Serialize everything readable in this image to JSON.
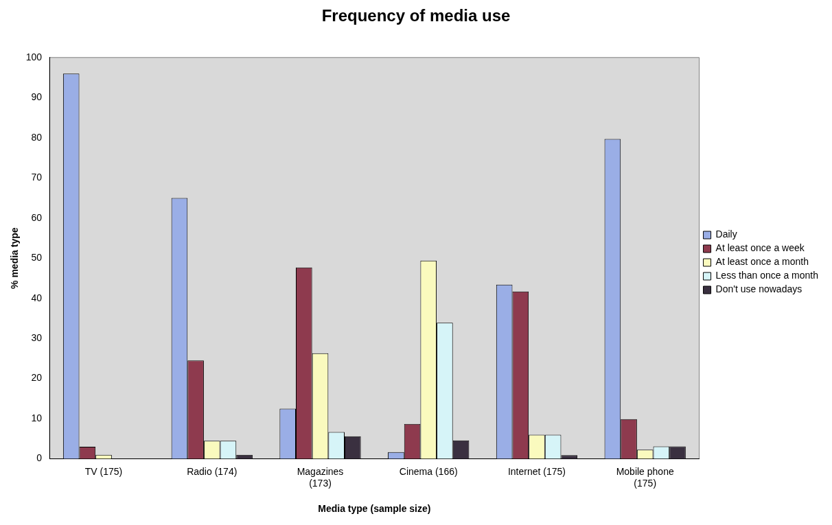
{
  "chart_data": {
    "type": "bar",
    "title": "Frequency of media use",
    "xlabel": "Media type (sample size)",
    "ylabel": "% media type",
    "categories": [
      "TV (175)",
      "Radio (174)",
      "Magazines (173)",
      "Cinema (166)",
      "Internet (175)",
      "Mobile phone (175)"
    ],
    "series": [
      {
        "name": "Daily",
        "color": "#9aaee6",
        "values": [
          96,
          65,
          12.5,
          1.7,
          43.4,
          79.7
        ]
      },
      {
        "name": "At least once a week",
        "color": "#8e3a4e",
        "values": [
          3,
          24.5,
          47.7,
          8.7,
          41.7,
          9.9
        ]
      },
      {
        "name": "At least once a month",
        "color": "#fafabe",
        "values": [
          1,
          4.5,
          26.3,
          49.4,
          6,
          2.3
        ]
      },
      {
        "name": "Less than once a month",
        "color": "#d6f4f8",
        "values": [
          0,
          4.5,
          6.7,
          33.9,
          6,
          3.1
        ]
      },
      {
        "name": "Don't use nowadays",
        "color": "#3a3040",
        "values": [
          0,
          1,
          5.6,
          4.6,
          0.9,
          3.1
        ]
      }
    ],
    "ylim": [
      0,
      100
    ],
    "yticks": [
      0,
      10,
      20,
      30,
      40,
      50,
      60,
      70,
      80,
      90,
      100
    ],
    "grid": false,
    "legend": "right"
  }
}
